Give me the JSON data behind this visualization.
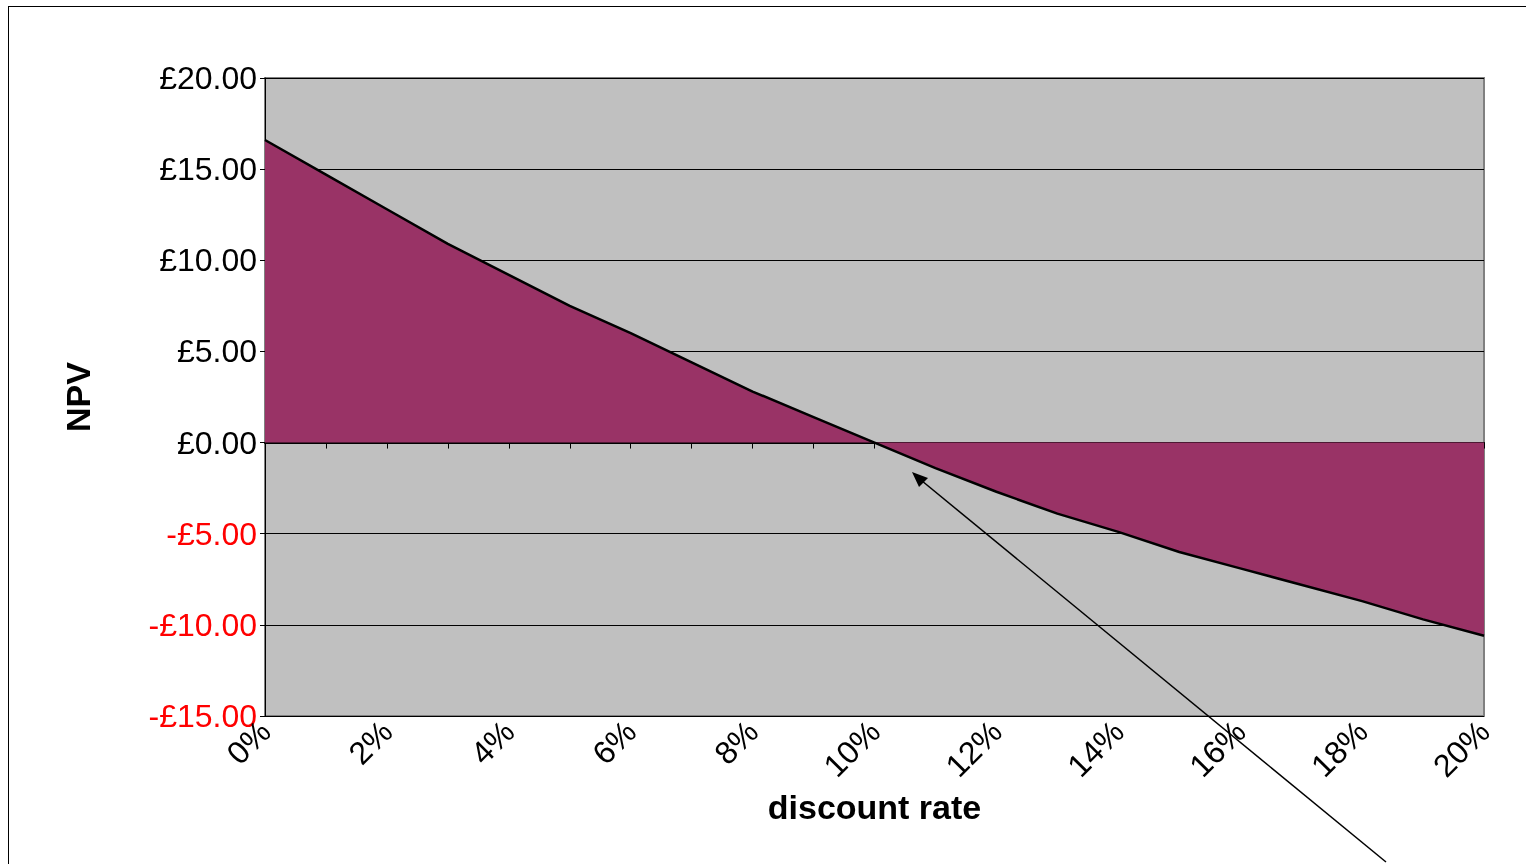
{
  "chart_data": {
    "type": "area",
    "xlabel": "discount rate",
    "ylabel": "NPV",
    "categories": [
      "0%",
      null,
      "2%",
      null,
      "4%",
      null,
      "6%",
      null,
      "8%",
      null,
      "10%",
      null,
      "12%",
      null,
      "14%",
      null,
      "16%",
      null,
      "18%",
      null,
      "20%"
    ],
    "series": [
      {
        "color": "#993366",
        "values": [
          16.6,
          14.7,
          12.8,
          10.9,
          9.2,
          7.5,
          6.0,
          4.4,
          2.8,
          1.4,
          0,
          -1.4,
          -2.7,
          -3.9,
          -4.9,
          -6.0,
          -6.9,
          -7.8,
          -8.7,
          -9.7,
          -10.6
        ]
      }
    ],
    "ylim": [
      -15,
      20
    ],
    "yticks": [
      {
        "value": -15,
        "label": "-£15.00"
      },
      {
        "value": -10,
        "label": "-£10.00"
      },
      {
        "value": -5,
        "label": "-£5.00"
      },
      {
        "value": 0,
        "label": "£0.00"
      },
      {
        "value": 5,
        "label": "£5.00"
      },
      {
        "value": 10,
        "label": "£10.00"
      },
      {
        "value": 15,
        "label": "£15.00"
      },
      {
        "value": 20,
        "label": "£20.00"
      }
    ],
    "grid": "y",
    "marker": "none",
    "line_style": "solid"
  }
}
